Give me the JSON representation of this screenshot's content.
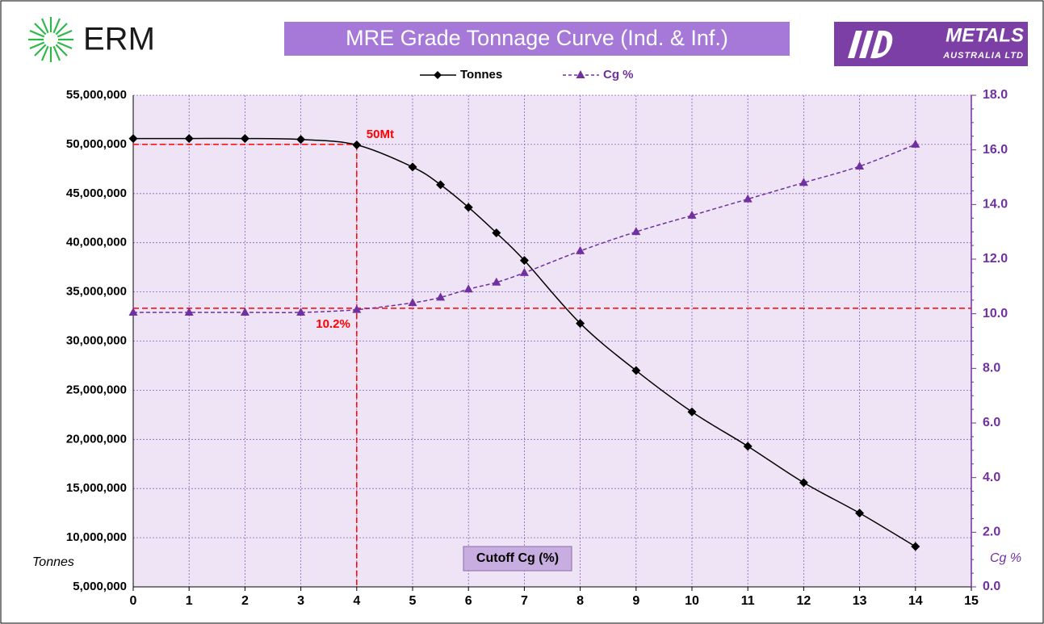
{
  "header": {
    "logo_left": "ERM",
    "logo_right": "METALS",
    "logo_right_sub": "AUSTRALIA LTD"
  },
  "chart_data": {
    "type": "line",
    "title": "MRE Grade Tonnage Curve (Ind. & Inf.)",
    "x_label": "Cutoff Cg (%)",
    "y_label": "Tonnes",
    "y2_label": "Cg %",
    "x": [
      0,
      1,
      2,
      3,
      4,
      5,
      5.5,
      6,
      6.5,
      7,
      8,
      9,
      10,
      11,
      12,
      13,
      14
    ],
    "series": [
      {
        "name": "Tonnes",
        "color": "#000000",
        "values": [
          50600000,
          50600000,
          50600000,
          50500000,
          49950000,
          47700000,
          45900000,
          43600000,
          41000000,
          38200000,
          31800000,
          27000000,
          22800000,
          19300000,
          15600000,
          12500000,
          9100000
        ]
      },
      {
        "name": "Cg %",
        "color": "#7030a0",
        "axis": "y2",
        "values": [
          10.05,
          10.05,
          10.05,
          10.05,
          10.15,
          10.4,
          10.6,
          10.9,
          11.15,
          11.5,
          12.3,
          13.0,
          13.6,
          14.2,
          14.8,
          15.4,
          16.2
        ]
      }
    ],
    "annotations": [
      {
        "text": "50Mt",
        "x": 4,
        "y": 50000000
      },
      {
        "text": "10.2%",
        "x": 4,
        "y": 10.2,
        "axis": "y2"
      }
    ],
    "xlim": [
      0,
      15
    ],
    "xticks": [
      0,
      1,
      2,
      3,
      4,
      5,
      6,
      7,
      8,
      9,
      10,
      11,
      12,
      13,
      14,
      15
    ],
    "ylim": [
      5000000,
      55000000
    ],
    "yticks": [
      {
        "value": 5000000,
        "label": "5,000,000"
      },
      {
        "value": 10000000,
        "label": "10,000,000"
      },
      {
        "value": 15000000,
        "label": "15,000,000"
      },
      {
        "value": 20000000,
        "label": "20,000,000"
      },
      {
        "value": 25000000,
        "label": "25,000,000"
      },
      {
        "value": 30000000,
        "label": "30,000,000"
      },
      {
        "value": 35000000,
        "label": "35,000,000"
      },
      {
        "value": 40000000,
        "label": "40,000,000"
      },
      {
        "value": 45000000,
        "label": "45,000,000"
      },
      {
        "value": 50000000,
        "label": "50,000,000"
      },
      {
        "value": 55000000,
        "label": "55,000,000"
      }
    ],
    "y2lim": [
      0,
      18
    ],
    "y2ticks": [
      {
        "value": 0,
        "label": "0.0"
      },
      {
        "value": 2,
        "label": "2.0"
      },
      {
        "value": 4,
        "label": "4.0"
      },
      {
        "value": 6,
        "label": "6.0"
      },
      {
        "value": 8,
        "label": "8.0"
      },
      {
        "value": 10,
        "label": "10.0"
      },
      {
        "value": 12,
        "label": "12.0"
      },
      {
        "value": 14,
        "label": "14.0"
      },
      {
        "value": 16,
        "label": "16.0"
      },
      {
        "value": 18,
        "label": "18.0"
      }
    ],
    "grid": true,
    "legend": "top"
  }
}
